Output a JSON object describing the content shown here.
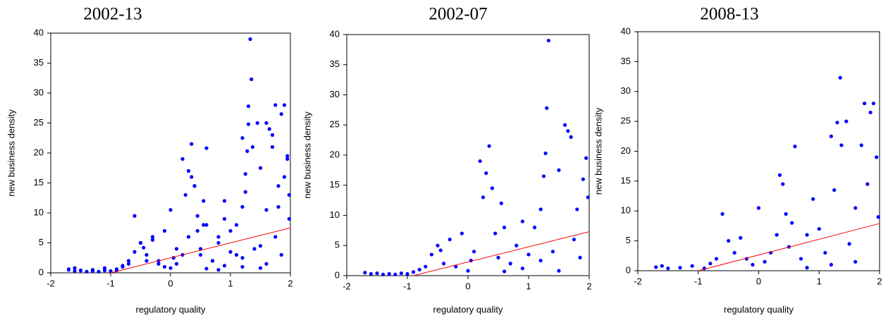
{
  "chart_data": [
    {
      "type": "scatter",
      "title": "2002-13",
      "xlabel": "regulatory quality",
      "ylabel": "new business density",
      "xlim": [
        -2,
        2
      ],
      "ylim": [
        0,
        40
      ],
      "xticks": [
        -2,
        -1,
        0,
        1,
        2
      ],
      "yticks": [
        0,
        5,
        10,
        15,
        20,
        25,
        30,
        35,
        40
      ],
      "series": [
        {
          "color": "#0000ff",
          "marker": "dot",
          "x": [
            -1.7,
            -1.6,
            -1.5,
            -1.4,
            -1.3,
            -1.2,
            -1.1,
            -1.0,
            -0.9,
            -0.8,
            -0.7,
            -0.6,
            -0.5,
            -0.45,
            -0.4,
            -0.3,
            -0.2,
            -0.1,
            0.0,
            0.05,
            0.1,
            0.2,
            0.25,
            0.3,
            0.35,
            0.4,
            0.45,
            0.5,
            0.55,
            0.6,
            0.7,
            0.8,
            0.9,
            1.0,
            1.1,
            1.2,
            1.25,
            1.28,
            1.3,
            1.33,
            1.4,
            1.5,
            1.6,
            1.65,
            1.7,
            1.75,
            1.8,
            1.85,
            1.9,
            1.95,
            1.98,
            1.5,
            1.2,
            0.9,
            0.6,
            -1.7,
            -1.6,
            -1.5,
            -1.3,
            -1.1,
            -0.9,
            -0.8,
            -0.7,
            -0.6,
            -0.5,
            -0.4,
            -0.3,
            -0.2,
            -0.1,
            0.0,
            0.1,
            0.2,
            0.3,
            0.35,
            0.4,
            0.45,
            0.5,
            0.55,
            0.6,
            0.7,
            0.8,
            0.9,
            1.0,
            1.1,
            1.2,
            1.25,
            1.3,
            1.35,
            1.37,
            1.45,
            1.5,
            1.6,
            1.7,
            1.75,
            1.8,
            1.85,
            1.9,
            1.95,
            1.98,
            1.2,
            0.8,
            1.6
          ],
          "values": [
            0.5,
            0.3,
            0.4,
            0.2,
            0.3,
            0.2,
            0.4,
            0.3,
            0.6,
            1.0,
            1.5,
            3.5,
            5.0,
            4.2,
            2.0,
            6.0,
            1.5,
            7.0,
            0.8,
            2.5,
            4.0,
            19.0,
            13.0,
            17.0,
            21.5,
            14.5,
            7.0,
            3.0,
            12.0,
            8.0,
            2.0,
            5.0,
            9.0,
            3.5,
            8.0,
            11.0,
            16.5,
            20.3,
            27.8,
            39.0,
            4.0,
            17.5,
            25.0,
            24.0,
            23.0,
            6.0,
            11.0,
            3.0,
            16.0,
            19.5,
            13.0,
            0.8,
            2.5,
            1.2,
            0.7,
            0.6,
            0.8,
            0.4,
            0.5,
            0.8,
            0.4,
            1.2,
            2.0,
            9.5,
            5.0,
            3.0,
            5.5,
            2.0,
            1.0,
            10.5,
            1.5,
            3.0,
            6.0,
            16.0,
            14.5,
            9.5,
            4.0,
            8.0,
            20.8,
            2.0,
            6.0,
            12.0,
            7.0,
            3.0,
            22.5,
            13.5,
            24.8,
            32.3,
            21.0,
            25.0,
            4.5,
            10.5,
            21.0,
            28.0,
            14.5,
            26.5,
            28.0,
            19.0,
            9.0,
            1.0,
            0.5,
            1.5
          ]
        },
        {
          "color": "#ff0000",
          "marker": "line",
          "x": [
            -1,
            2
          ],
          "values": [
            0,
            7.5
          ]
        }
      ]
    },
    {
      "type": "scatter",
      "title": "2002-07",
      "xlabel": "regulatory quality",
      "ylabel": "new business density",
      "xlim": [
        -2,
        2
      ],
      "ylim": [
        0,
        40
      ],
      "xticks": [
        -2,
        -1,
        0,
        1,
        2
      ],
      "yticks": [
        0,
        5,
        10,
        15,
        20,
        25,
        30,
        35,
        40
      ],
      "series": [
        {
          "color": "#0000ff",
          "marker": "dot",
          "x": [
            -1.7,
            -1.6,
            -1.5,
            -1.4,
            -1.3,
            -1.2,
            -1.1,
            -1.0,
            -0.9,
            -0.8,
            -0.7,
            -0.6,
            -0.5,
            -0.45,
            -0.4,
            -0.3,
            -0.2,
            -0.1,
            0.0,
            0.05,
            0.1,
            0.2,
            0.25,
            0.3,
            0.35,
            0.4,
            0.45,
            0.5,
            0.55,
            0.6,
            0.7,
            0.8,
            0.9,
            1.0,
            1.1,
            1.2,
            1.25,
            1.28,
            1.3,
            1.33,
            1.4,
            1.5,
            1.6,
            1.65,
            1.7,
            1.75,
            1.8,
            1.85,
            1.9,
            1.95,
            1.98,
            1.5,
            1.2,
            0.9,
            0.6
          ],
          "values": [
            0.5,
            0.3,
            0.4,
            0.2,
            0.3,
            0.2,
            0.4,
            0.3,
            0.6,
            1.0,
            1.5,
            3.5,
            5.0,
            4.2,
            2.0,
            6.0,
            1.5,
            7.0,
            0.8,
            2.5,
            4.0,
            19.0,
            13.0,
            17.0,
            21.5,
            14.5,
            7.0,
            3.0,
            12.0,
            8.0,
            2.0,
            5.0,
            9.0,
            3.5,
            8.0,
            11.0,
            16.5,
            20.3,
            27.8,
            39.0,
            4.0,
            17.5,
            25.0,
            24.0,
            23.0,
            6.0,
            11.0,
            3.0,
            16.0,
            19.5,
            13.0,
            0.8,
            2.5,
            1.2,
            0.7
          ]
        },
        {
          "color": "#ff0000",
          "marker": "line",
          "x": [
            -0.9,
            2
          ],
          "values": [
            0,
            7.3
          ]
        }
      ]
    },
    {
      "type": "scatter",
      "title": "2008-13",
      "xlabel": "regulatory quality",
      "ylabel": "new business density",
      "xlim": [
        -2,
        2
      ],
      "ylim": [
        0,
        40
      ],
      "xticks": [
        -2,
        -1,
        0,
        1,
        2
      ],
      "yticks": [
        0,
        5,
        10,
        15,
        20,
        25,
        30,
        35,
        40
      ],
      "series": [
        {
          "color": "#0000ff",
          "marker": "dot",
          "x": [
            -1.7,
            -1.6,
            -1.5,
            -1.3,
            -1.1,
            -0.9,
            -0.8,
            -0.7,
            -0.6,
            -0.5,
            -0.4,
            -0.3,
            -0.2,
            -0.1,
            0.0,
            0.1,
            0.2,
            0.3,
            0.35,
            0.4,
            0.45,
            0.5,
            0.55,
            0.6,
            0.7,
            0.8,
            0.9,
            1.0,
            1.1,
            1.2,
            1.25,
            1.3,
            1.35,
            1.37,
            1.45,
            1.5,
            1.6,
            1.7,
            1.75,
            1.8,
            1.85,
            1.9,
            1.95,
            1.98,
            1.2,
            0.8,
            1.6
          ],
          "values": [
            0.6,
            0.8,
            0.4,
            0.5,
            0.8,
            0.4,
            1.2,
            2.0,
            9.5,
            5.0,
            3.0,
            5.5,
            2.0,
            1.0,
            10.5,
            1.5,
            3.0,
            6.0,
            16.0,
            14.5,
            9.5,
            4.0,
            8.0,
            20.8,
            2.0,
            6.0,
            12.0,
            7.0,
            3.0,
            22.5,
            13.5,
            24.8,
            32.3,
            21.0,
            25.0,
            4.5,
            10.5,
            21.0,
            28.0,
            14.5,
            26.5,
            28.0,
            19.0,
            9.0,
            1.0,
            0.5,
            1.5
          ]
        },
        {
          "color": "#ff0000",
          "marker": "line",
          "x": [
            -1,
            2
          ],
          "values": [
            0,
            7.9
          ]
        }
      ]
    }
  ]
}
